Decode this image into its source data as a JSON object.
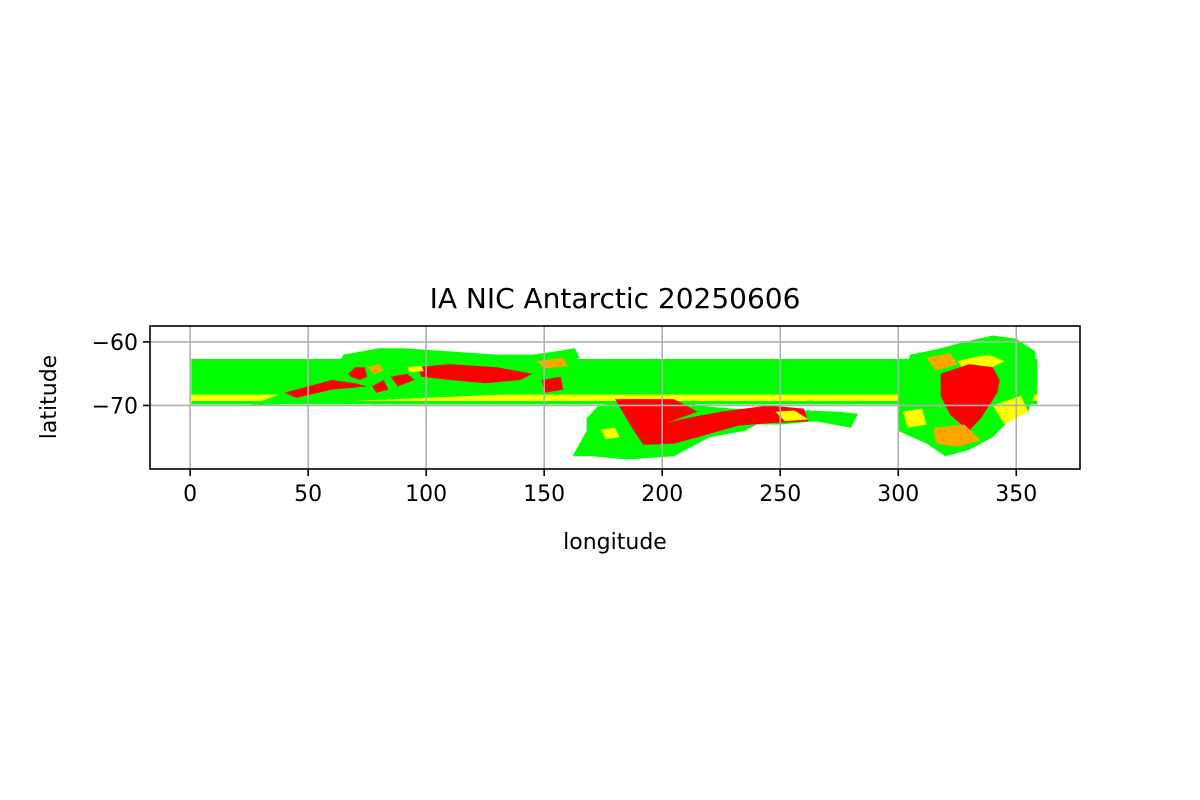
{
  "chart_data": {
    "type": "map",
    "title": "IA NIC Antarctic 20250606",
    "xlabel": "longitude",
    "ylabel": "latitude",
    "xlim": [
      -17,
      377
    ],
    "ylim": [
      -80,
      -57.5
    ],
    "xticks": [
      0,
      50,
      100,
      150,
      200,
      250,
      300,
      350
    ],
    "yticks": [
      -60,
      -70
    ],
    "x_tick_labels": [
      "0",
      "50",
      "100",
      "150",
      "200",
      "250",
      "300",
      "350"
    ],
    "y_tick_labels": [
      "−60",
      "−70"
    ],
    "grid": true,
    "colors": {
      "green": "#00ff00",
      "yellow": "#ffff00",
      "orange": "#ffa500",
      "red": "#ff0000",
      "grid": "#b0b0b0"
    },
    "regions": [
      {
        "color": "green",
        "points": [
          [
            0.5,
            -62.7
          ],
          [
            359,
            -62.7
          ],
          [
            359,
            -69.8
          ],
          [
            0.5,
            -69.8
          ]
        ]
      },
      {
        "color": "yellow",
        "points": [
          [
            0.5,
            -68.3
          ],
          [
            359,
            -68.3
          ],
          [
            359,
            -69.3
          ],
          [
            0.5,
            -69.3
          ]
        ]
      },
      {
        "color": "yellow",
        "points": [
          [
            320,
            -66.5
          ],
          [
            359,
            -66.5
          ],
          [
            359,
            -67.5
          ],
          [
            320,
            -67.5
          ]
        ]
      },
      {
        "color": "green",
        "points": [
          [
            25,
            -70
          ],
          [
            40,
            -68
          ],
          [
            60,
            -65
          ],
          [
            65,
            -62
          ],
          [
            80,
            -61
          ],
          [
            90,
            -61
          ],
          [
            110,
            -61.5
          ],
          [
            130,
            -62
          ],
          [
            145,
            -62
          ],
          [
            155,
            -61.5
          ],
          [
            163,
            -61
          ],
          [
            165,
            -62.5
          ],
          [
            160,
            -63
          ],
          [
            152,
            -67.8
          ],
          [
            150,
            -68
          ]
        ]
      },
      {
        "color": "red",
        "points": [
          [
            67,
            -65
          ],
          [
            70,
            -64
          ],
          [
            74,
            -64
          ],
          [
            75,
            -65.5
          ],
          [
            72,
            -66
          ],
          [
            68,
            -65.5
          ]
        ]
      },
      {
        "color": "red",
        "points": [
          [
            40,
            -68
          ],
          [
            60,
            -66
          ],
          [
            70,
            -66.5
          ],
          [
            75,
            -67
          ],
          [
            60,
            -67.5
          ],
          [
            45,
            -68.8
          ]
        ]
      },
      {
        "color": "red",
        "points": [
          [
            96,
            -64
          ],
          [
            110,
            -63.5
          ],
          [
            130,
            -64
          ],
          [
            145,
            -65
          ],
          [
            140,
            -66
          ],
          [
            125,
            -66.5
          ],
          [
            110,
            -66
          ],
          [
            98,
            -65.5
          ]
        ]
      },
      {
        "color": "red",
        "points": [
          [
            85,
            -65.5
          ],
          [
            92,
            -65
          ],
          [
            95,
            -66
          ],
          [
            88,
            -67
          ]
        ]
      },
      {
        "color": "orange",
        "points": [
          [
            75,
            -64
          ],
          [
            80,
            -63.5
          ],
          [
            82,
            -64.5
          ],
          [
            78,
            -65
          ]
        ]
      },
      {
        "color": "yellow",
        "points": [
          [
            92,
            -64
          ],
          [
            98,
            -63.8
          ],
          [
            99,
            -64.6
          ],
          [
            93,
            -64.8
          ]
        ]
      },
      {
        "color": "red",
        "points": [
          [
            77,
            -67
          ],
          [
            82,
            -66
          ],
          [
            84,
            -67.5
          ],
          [
            79,
            -68
          ]
        ]
      },
      {
        "color": "orange",
        "points": [
          [
            147,
            -63
          ],
          [
            158,
            -62.5
          ],
          [
            160,
            -63.8
          ],
          [
            150,
            -64.2
          ]
        ]
      },
      {
        "color": "red",
        "points": [
          [
            149,
            -66
          ],
          [
            157,
            -65.5
          ],
          [
            158,
            -67.5
          ],
          [
            150,
            -68
          ]
        ]
      },
      {
        "color": "green",
        "points": [
          [
            162,
            -78
          ],
          [
            168,
            -74
          ],
          [
            168,
            -72
          ],
          [
            173,
            -70
          ],
          [
            190,
            -69
          ],
          [
            205,
            -69.2
          ],
          [
            220,
            -70.2
          ],
          [
            230,
            -70.5
          ],
          [
            255,
            -70.7
          ],
          [
            275,
            -71
          ],
          [
            283,
            -71.3
          ],
          [
            280,
            -73.5
          ],
          [
            265,
            -72.5
          ],
          [
            250,
            -73
          ],
          [
            240,
            -73
          ],
          [
            235,
            -74
          ],
          [
            220,
            -75
          ],
          [
            205,
            -78
          ],
          [
            185,
            -78.5
          ],
          [
            170,
            -78
          ]
        ]
      },
      {
        "color": "red",
        "points": [
          [
            180,
            -69
          ],
          [
            205,
            -69
          ],
          [
            215,
            -71
          ],
          [
            200,
            -73
          ],
          [
            188,
            -74
          ]
        ]
      },
      {
        "color": "red",
        "points": [
          [
            188,
            -74
          ],
          [
            210,
            -72
          ],
          [
            225,
            -71
          ],
          [
            245,
            -70
          ],
          [
            260,
            -70.5
          ],
          [
            262,
            -72.5
          ],
          [
            245,
            -72.8
          ],
          [
            232,
            -73.2
          ],
          [
            215,
            -75
          ],
          [
            205,
            -76
          ],
          [
            192,
            -76.2
          ]
        ]
      },
      {
        "color": "yellow",
        "points": [
          [
            248,
            -71
          ],
          [
            256,
            -70.8
          ],
          [
            262,
            -72.2
          ],
          [
            252,
            -72.5
          ]
        ]
      },
      {
        "color": "yellow",
        "points": [
          [
            174,
            -73.8
          ],
          [
            180,
            -73.5
          ],
          [
            182,
            -75
          ],
          [
            176,
            -75.3
          ]
        ]
      },
      {
        "color": "green",
        "points": [
          [
            300,
            -69
          ],
          [
            305,
            -62
          ],
          [
            312,
            -61.5
          ],
          [
            318,
            -61
          ],
          [
            328,
            -60
          ],
          [
            340,
            -59
          ],
          [
            350,
            -59.5
          ],
          [
            358,
            -61.5
          ],
          [
            359,
            -67
          ],
          [
            355,
            -71
          ],
          [
            348,
            -72
          ],
          [
            340,
            -75
          ],
          [
            330,
            -77
          ],
          [
            320,
            -78
          ],
          [
            312,
            -76
          ],
          [
            300,
            -74
          ]
        ]
      },
      {
        "color": "orange",
        "points": [
          [
            312,
            -62.5
          ],
          [
            322,
            -61.8
          ],
          [
            325,
            -63.5
          ],
          [
            316,
            -64.5
          ]
        ]
      },
      {
        "color": "yellow",
        "points": [
          [
            325,
            -63
          ],
          [
            338,
            -62
          ],
          [
            345,
            -63
          ],
          [
            338,
            -64.3
          ],
          [
            328,
            -64.5
          ]
        ]
      },
      {
        "color": "red",
        "points": [
          [
            318,
            -65
          ],
          [
            330,
            -63.5
          ],
          [
            340,
            -64
          ],
          [
            343,
            -66
          ],
          [
            342,
            -68
          ],
          [
            335,
            -72
          ],
          [
            330,
            -74
          ],
          [
            322,
            -71.5
          ],
          [
            318,
            -68.5
          ]
        ]
      },
      {
        "color": "yellow",
        "points": [
          [
            340,
            -70
          ],
          [
            352,
            -68.5
          ],
          [
            355,
            -71
          ],
          [
            345,
            -73
          ]
        ]
      },
      {
        "color": "orange",
        "points": [
          [
            315,
            -73.5
          ],
          [
            328,
            -73
          ],
          [
            335,
            -75.5
          ],
          [
            325,
            -76.5
          ],
          [
            316,
            -76
          ]
        ]
      },
      {
        "color": "yellow",
        "points": [
          [
            302,
            -71
          ],
          [
            310,
            -70.5
          ],
          [
            312,
            -73
          ],
          [
            304,
            -73.5
          ]
        ]
      }
    ]
  }
}
